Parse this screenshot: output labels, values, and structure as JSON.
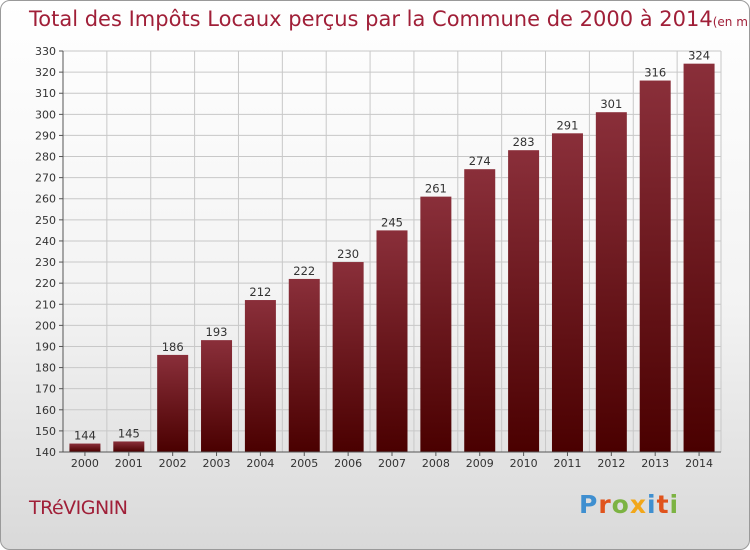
{
  "header": {
    "title": "Total des Impôts Locaux perçus par la Commune de 2000 à 2014",
    "unit": "(en milliers d'€)"
  },
  "footer": {
    "commune": "TRéVIGNIN",
    "logo": [
      "P",
      "r",
      "o",
      "x",
      "i",
      "t",
      "i"
    ],
    "logo_colors": [
      "#3f8fd0",
      "#e0531c",
      "#7cb342",
      "#f2a71a",
      "#3f8fd0",
      "#e0531c",
      "#7cb342"
    ]
  },
  "colors": {
    "bar_top": "#8a2f3a",
    "bar_bottom": "#4a0000",
    "grid": "#c8c8c8"
  },
  "chart_data": {
    "type": "bar",
    "title": "Total des Impôts Locaux perçus par la Commune de 2000 à 2014",
    "subtitle": "(en milliers d'€)",
    "xlabel": "",
    "ylabel": "",
    "categories": [
      "2000",
      "2001",
      "2002",
      "2003",
      "2004",
      "2005",
      "2006",
      "2007",
      "2008",
      "2009",
      "2010",
      "2011",
      "2012",
      "2013",
      "2014"
    ],
    "values": [
      144,
      145,
      186,
      193,
      212,
      222,
      230,
      245,
      261,
      274,
      283,
      291,
      301,
      316,
      324
    ],
    "ylim": [
      140,
      330
    ],
    "yticks": [
      140,
      150,
      160,
      170,
      180,
      190,
      200,
      210,
      220,
      230,
      240,
      250,
      260,
      270,
      280,
      290,
      300,
      310,
      320,
      330
    ],
    "grid": true
  }
}
